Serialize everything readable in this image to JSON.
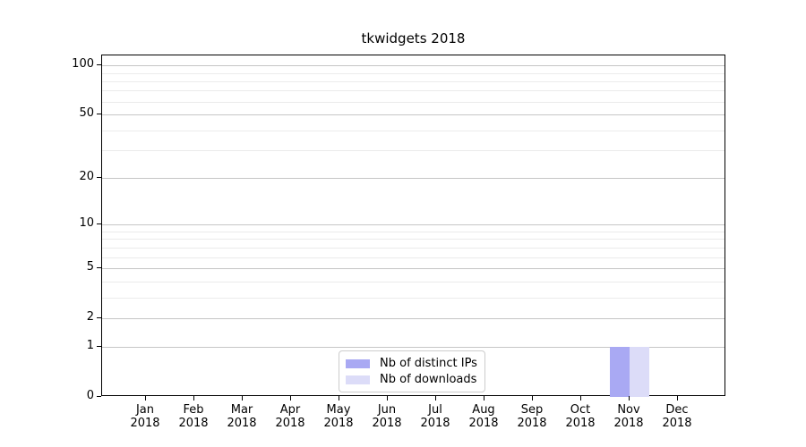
{
  "chart_data": {
    "type": "bar",
    "title": "tkwidgets 2018",
    "categories": [
      "Jan 2018",
      "Feb 2018",
      "Mar 2018",
      "Apr 2018",
      "May 2018",
      "Jun 2018",
      "Jul 2018",
      "Aug 2018",
      "Sep 2018",
      "Oct 2018",
      "Nov 2018",
      "Dec 2018"
    ],
    "x_tick_line1": [
      "Jan",
      "Feb",
      "Mar",
      "Apr",
      "May",
      "Jun",
      "Jul",
      "Aug",
      "Sep",
      "Oct",
      "Nov",
      "Dec"
    ],
    "x_tick_line2": [
      "2018",
      "2018",
      "2018",
      "2018",
      "2018",
      "2018",
      "2018",
      "2018",
      "2018",
      "2018",
      "2018",
      "2018"
    ],
    "series": [
      {
        "name": "Nb of distinct IPs",
        "color": "#a9a9f3",
        "values": [
          0,
          0,
          0,
          0,
          0,
          0,
          0,
          0,
          0,
          0,
          1,
          0
        ]
      },
      {
        "name": "Nb of downloads",
        "color": "#dcdcf8",
        "values": [
          0,
          0,
          0,
          0,
          0,
          0,
          0,
          0,
          0,
          0,
          1,
          0
        ]
      }
    ],
    "yscale": "log1p",
    "ylim": [
      0,
      115
    ],
    "y_major_ticks": [
      0,
      1,
      2,
      5,
      10,
      20,
      50,
      100
    ],
    "y_minor_ticks": [
      3,
      4,
      6,
      7,
      8,
      9,
      30,
      40,
      60,
      70,
      80,
      90
    ],
    "grid": true,
    "legend_position": "lower center",
    "colors": {
      "spine": "#000000",
      "major_grid": "#c6c6c6",
      "minor_grid": "#ebebeb",
      "text": "#000000",
      "legend_border": "#cccccc",
      "background": "#ffffff"
    }
  }
}
